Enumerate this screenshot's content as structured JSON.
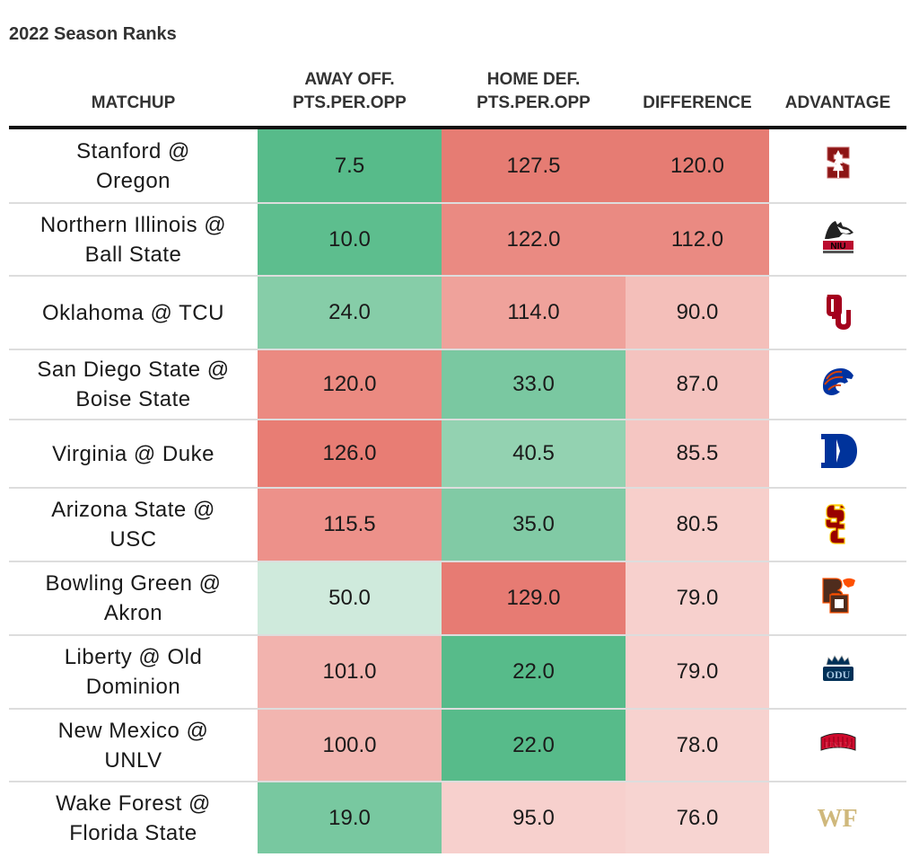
{
  "title": "2022 Season Ranks",
  "columns": [
    {
      "key": "matchup",
      "line1": "",
      "line2": "MATCHUP"
    },
    {
      "key": "away_off",
      "line1": "AWAY OFF.",
      "line2": "PTS.PER.OPP"
    },
    {
      "key": "home_def",
      "line1": "HOME DEF.",
      "line2": "PTS.PER.OPP"
    },
    {
      "key": "difference",
      "line1": "",
      "line2": "DIFFERENCE"
    },
    {
      "key": "advantage",
      "line1": "",
      "line2": "ADVANTAGE"
    }
  ],
  "color_scale": {
    "low": "#57bb8a",
    "mid": "#ffffff",
    "high": "#e67c73"
  },
  "rows": [
    {
      "matchup": [
        "Stanford @",
        "Oregon"
      ],
      "away_off": "7.5",
      "home_def": "127.5",
      "difference": "120.0",
      "advantage": "stanford-logo",
      "colors": {
        "away_off": "#57bb8a",
        "home_def": "#e67c73",
        "difference": "#e67c73"
      }
    },
    {
      "matchup": [
        "Northern Illinois @",
        "Ball State"
      ],
      "away_off": "10.0",
      "home_def": "122.0",
      "difference": "112.0",
      "advantage": "niu-logo",
      "colors": {
        "away_off": "#5dbe8e",
        "home_def": "#ea8a82",
        "difference": "#ea8a82"
      }
    },
    {
      "matchup": [
        "Oklahoma @ TCU"
      ],
      "away_off": "24.0",
      "home_def": "114.0",
      "difference": "90.0",
      "advantage": "oklahoma-logo",
      "colors": {
        "away_off": "#86cda8",
        "home_def": "#efa29b",
        "difference": "#f4bfba"
      }
    },
    {
      "matchup": [
        "San Diego State @",
        "Boise State"
      ],
      "away_off": "120.0",
      "home_def": "33.0",
      "difference": "87.0",
      "advantage": "boise-state-logo",
      "colors": {
        "away_off": "#eb8a81",
        "home_def": "#7ac8a1",
        "difference": "#f4c3bf"
      }
    },
    {
      "matchup": [
        "Virginia @ Duke"
      ],
      "away_off": "126.0",
      "home_def": "40.5",
      "difference": "85.5",
      "advantage": "duke-logo",
      "colors": {
        "away_off": "#e87d74",
        "home_def": "#93d2b1",
        "difference": "#f5c6c2"
      }
    },
    {
      "matchup": [
        "Arizona State @",
        "USC"
      ],
      "away_off": "115.5",
      "home_def": "35.0",
      "difference": "80.5",
      "advantage": "usc-logo",
      "colors": {
        "away_off": "#ed918a",
        "home_def": "#81caa5",
        "difference": "#f7cfcb"
      }
    },
    {
      "matchup": [
        "Bowling Green @",
        "Akron"
      ],
      "away_off": "50.0",
      "home_def": "129.0",
      "difference": "79.0",
      "advantage": "bowling-green-logo",
      "colors": {
        "away_off": "#cfeadc",
        "home_def": "#e77b73",
        "difference": "#f7d0cd"
      }
    },
    {
      "matchup": [
        "Liberty @ Old",
        "Dominion"
      ],
      "away_off": "101.0",
      "home_def": "22.0",
      "difference": "79.0",
      "advantage": "odu-logo",
      "colors": {
        "away_off": "#f2b3ae",
        "home_def": "#57bb8a",
        "difference": "#f7d0cd"
      }
    },
    {
      "matchup": [
        "New Mexico @",
        "UNLV"
      ],
      "away_off": "100.0",
      "home_def": "22.0",
      "difference": "78.0",
      "advantage": "unlv-logo",
      "colors": {
        "away_off": "#f2b5b0",
        "home_def": "#57bb8a",
        "difference": "#f7d2cf"
      }
    },
    {
      "matchup": [
        "Wake Forest @",
        "Florida State"
      ],
      "away_off": "19.0",
      "home_def": "95.0",
      "difference": "76.0",
      "advantage": "wake-forest-logo",
      "colors": {
        "away_off": "#78c8a0",
        "home_def": "#f7d0cd",
        "difference": "#f7d4d1"
      }
    }
  ]
}
